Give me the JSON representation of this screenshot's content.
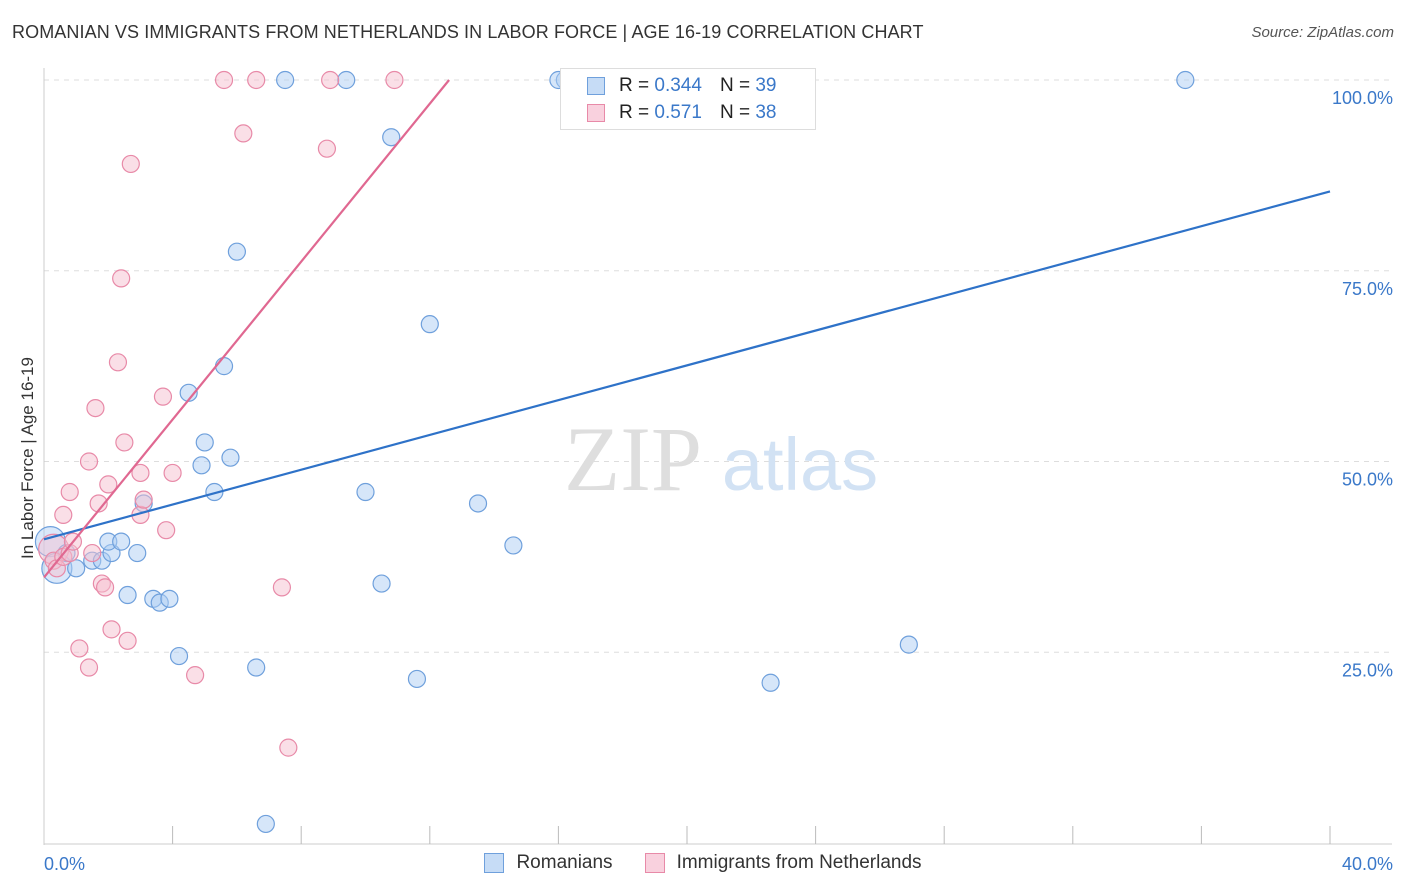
{
  "header": {
    "title": "ROMANIAN VS IMMIGRANTS FROM NETHERLANDS IN LABOR FORCE | AGE 16-19 CORRELATION CHART",
    "source": "Source: ZipAtlas.com"
  },
  "watermark": {
    "zip": "ZIP",
    "atlas": "atlas"
  },
  "legend": {
    "rows": [
      {
        "r_label": "R =",
        "r_value": "0.344",
        "n_label": "N =",
        "n_value": "39"
      },
      {
        "r_label": "R =",
        "r_value": "0.571",
        "n_label": "N =",
        "n_value": "38"
      }
    ]
  },
  "colors": {
    "blue_fill": "#aecdf3",
    "blue_stroke": "#6fa0dc",
    "blue_line": "#2e72c8",
    "pink_fill": "#f6bfd0",
    "pink_stroke": "#e88aa8",
    "pink_line": "#e06891",
    "grid": "#dddddd",
    "tick_text": "#3a78c9"
  },
  "chart_data": {
    "type": "scatter",
    "title": "ROMANIAN VS IMMIGRANTS FROM NETHERLANDS IN LABOR FORCE | AGE 16-19 CORRELATION CHART",
    "xlabel": "",
    "ylabel": "In Labor Force | Age 16-19",
    "xlim": [
      0,
      40
    ],
    "ylim": [
      0,
      105
    ],
    "x_tick_labels": [
      "0.0%",
      "40.0%"
    ],
    "y_ticks": [
      25,
      50,
      75,
      100
    ],
    "y_tick_labels": [
      "25.0%",
      "50.0%",
      "75.0%",
      "100.0%"
    ],
    "grid": true,
    "legend_position": "bottom",
    "series": [
      {
        "name": "Romanians",
        "r": 0.344,
        "n": 39,
        "trend": {
          "x": [
            0,
            40
          ],
          "y": [
            39.8,
            85.4
          ]
        },
        "points": [
          {
            "x": 0.2,
            "y": 39.5,
            "big": true
          },
          {
            "x": 0.4,
            "y": 36.0,
            "big": true
          },
          {
            "x": 0.7,
            "y": 38.0
          },
          {
            "x": 1.0,
            "y": 36.0
          },
          {
            "x": 1.5,
            "y": 37.0
          },
          {
            "x": 1.8,
            "y": 37.0
          },
          {
            "x": 2.1,
            "y": 38.0
          },
          {
            "x": 2.0,
            "y": 39.5
          },
          {
            "x": 2.4,
            "y": 39.5
          },
          {
            "x": 2.9,
            "y": 38.0
          },
          {
            "x": 2.6,
            "y": 32.5
          },
          {
            "x": 3.4,
            "y": 32.0
          },
          {
            "x": 3.6,
            "y": 31.5
          },
          {
            "x": 3.9,
            "y": 32.0
          },
          {
            "x": 3.1,
            "y": 44.5
          },
          {
            "x": 4.2,
            "y": 24.5
          },
          {
            "x": 4.5,
            "y": 59.0
          },
          {
            "x": 4.9,
            "y": 49.5
          },
          {
            "x": 5.0,
            "y": 52.5
          },
          {
            "x": 5.3,
            "y": 46.0
          },
          {
            "x": 5.6,
            "y": 62.5
          },
          {
            "x": 5.8,
            "y": 50.5
          },
          {
            "x": 6.0,
            "y": 77.5
          },
          {
            "x": 6.6,
            "y": 23.0
          },
          {
            "x": 6.9,
            "y": 2.5
          },
          {
            "x": 7.5,
            "y": 100.0
          },
          {
            "x": 9.4,
            "y": 100.0
          },
          {
            "x": 10.0,
            "y": 46.0
          },
          {
            "x": 10.5,
            "y": 34.0
          },
          {
            "x": 10.8,
            "y": 92.5
          },
          {
            "x": 11.6,
            "y": 21.5
          },
          {
            "x": 12.0,
            "y": 68.0
          },
          {
            "x": 13.5,
            "y": 44.5
          },
          {
            "x": 14.6,
            "y": 39.0
          },
          {
            "x": 16.2,
            "y": 100.0
          },
          {
            "x": 22.6,
            "y": 21.0
          },
          {
            "x": 26.9,
            "y": 26.0
          },
          {
            "x": 35.5,
            "y": 100.0
          },
          {
            "x": 16.0,
            "y": 100.0
          }
        ]
      },
      {
        "name": "Immigrants from Netherlands",
        "r": 0.571,
        "n": 38,
        "trend": {
          "x": [
            0,
            12.6
          ],
          "y": [
            34.8,
            100.0
          ]
        },
        "points": [
          {
            "x": 0.3,
            "y": 38.5,
            "big": true
          },
          {
            "x": 0.3,
            "y": 37.0
          },
          {
            "x": 0.4,
            "y": 36.0
          },
          {
            "x": 0.6,
            "y": 37.5
          },
          {
            "x": 0.8,
            "y": 38.0
          },
          {
            "x": 0.9,
            "y": 39.5
          },
          {
            "x": 0.6,
            "y": 43.0
          },
          {
            "x": 0.8,
            "y": 46.0
          },
          {
            "x": 1.1,
            "y": 25.5
          },
          {
            "x": 1.4,
            "y": 23.0
          },
          {
            "x": 1.4,
            "y": 50.0
          },
          {
            "x": 1.5,
            "y": 38.0
          },
          {
            "x": 1.6,
            "y": 57.0
          },
          {
            "x": 1.7,
            "y": 44.5
          },
          {
            "x": 1.8,
            "y": 34.0
          },
          {
            "x": 1.9,
            "y": 33.5
          },
          {
            "x": 2.0,
            "y": 47.0
          },
          {
            "x": 2.1,
            "y": 28.0
          },
          {
            "x": 2.3,
            "y": 63.0
          },
          {
            "x": 2.4,
            "y": 74.0
          },
          {
            "x": 2.5,
            "y": 52.5
          },
          {
            "x": 2.6,
            "y": 26.5
          },
          {
            "x": 2.7,
            "y": 89.0
          },
          {
            "x": 3.0,
            "y": 43.0
          },
          {
            "x": 3.0,
            "y": 48.5
          },
          {
            "x": 3.1,
            "y": 45.0
          },
          {
            "x": 3.7,
            "y": 58.5
          },
          {
            "x": 3.8,
            "y": 41.0
          },
          {
            "x": 4.0,
            "y": 48.5
          },
          {
            "x": 4.7,
            "y": 22.0
          },
          {
            "x": 5.6,
            "y": 100.0
          },
          {
            "x": 6.2,
            "y": 93.0
          },
          {
            "x": 6.6,
            "y": 100.0
          },
          {
            "x": 7.4,
            "y": 33.5
          },
          {
            "x": 7.6,
            "y": 12.5
          },
          {
            "x": 8.8,
            "y": 91.0
          },
          {
            "x": 8.9,
            "y": 100.0
          },
          {
            "x": 10.9,
            "y": 100.0
          }
        ]
      }
    ]
  }
}
